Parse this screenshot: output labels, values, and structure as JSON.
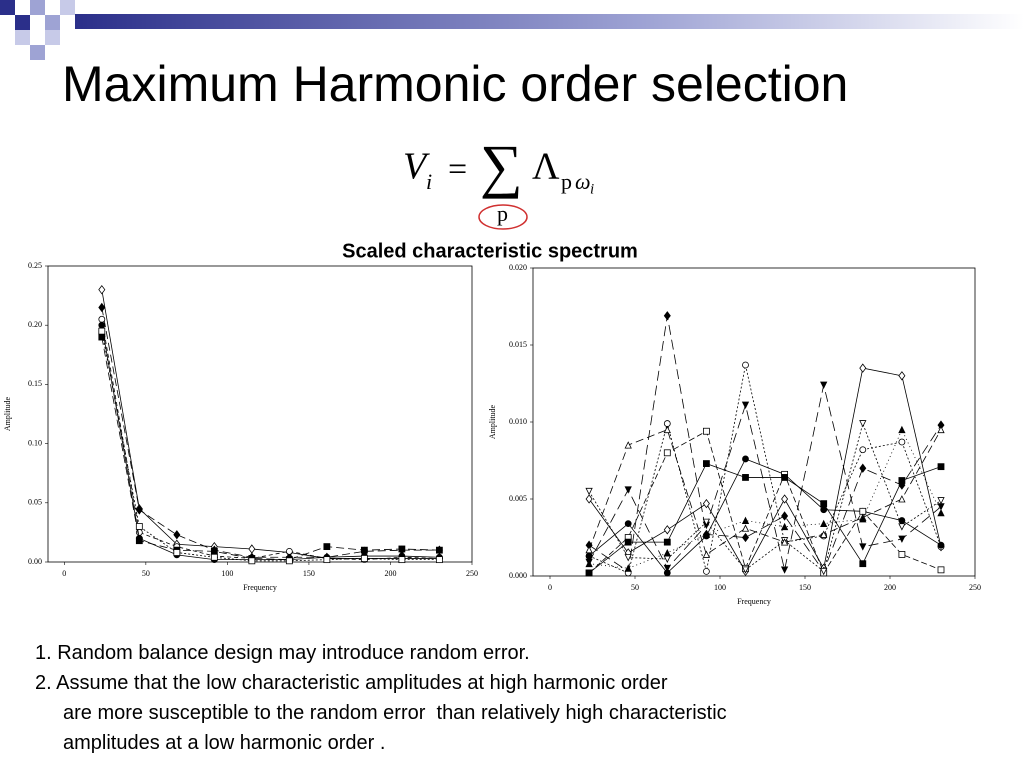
{
  "slide": {
    "title": "Maximum Harmonic order selection",
    "formula": {
      "lhs": "V",
      "lhs_sub": "i",
      "eq": "=",
      "sum": "∑",
      "sum_sub": "p",
      "term": "Λ",
      "term_sub_p": "p",
      "term_sub_omega": "ω",
      "term_sub_i": "i"
    },
    "subtitle": "Scaled characteristic spectrum",
    "notes": [
      "1. Random balance design may introduce random error.",
      "2. Assume that the low characteristic amplitudes at high harmonic order",
      "are more susceptible to the random error  than relatively high characteristic",
      "amplitudes at a low harmonic order ."
    ]
  },
  "chart_data": [
    {
      "type": "line",
      "x_label": "Frequency",
      "y_label": "Amplitude",
      "x": [
        23,
        46,
        69,
        92,
        115,
        138,
        161,
        184,
        207,
        230
      ],
      "xlim": [
        -10,
        250
      ],
      "xticks": [
        0,
        50,
        100,
        150,
        200,
        250
      ],
      "ylim": [
        0,
        0.25
      ],
      "yticks": [
        {
          "value": 0,
          "label": "0.00"
        },
        {
          "value": 0.05,
          "label": "0.05"
        },
        {
          "value": 0.1,
          "label": "0.10"
        },
        {
          "value": 0.15,
          "label": "0.15"
        },
        {
          "value": 0.2,
          "label": "0.20"
        },
        {
          "value": 0.25,
          "label": "0.25"
        }
      ],
      "series": [
        {
          "color": "#000000",
          "marker": "diamond",
          "filled": false,
          "dash": "",
          "values": [
            0.23,
            0.045,
            0.015,
            0.013,
            0.011,
            0.008,
            0.003,
            0.003,
            0.003,
            0.003
          ]
        },
        {
          "color": "#000000",
          "marker": "diamond",
          "filled": true,
          "dash": "8,4",
          "values": [
            0.215,
            0.044,
            0.023,
            0.01,
            0.004,
            0.004,
            0.004,
            0.009,
            0.01,
            0.01
          ]
        },
        {
          "color": "#000000",
          "marker": "circle",
          "filled": false,
          "dash": "4,3",
          "values": [
            0.205,
            0.025,
            0.013,
            0.005,
            0.003,
            0.009,
            0.003,
            0.002,
            0.004,
            0.003
          ]
        },
        {
          "color": "#000000",
          "marker": "circle",
          "filled": true,
          "dash": "",
          "values": [
            0.2,
            0.02,
            0.006,
            0.002,
            0.002,
            0.002,
            0.004,
            0.005,
            0.005,
            0.004
          ]
        },
        {
          "color": "#000000",
          "marker": "square",
          "filled": true,
          "dash": "8,4",
          "values": [
            0.19,
            0.018,
            0.01,
            0.009,
            0.003,
            0.002,
            0.013,
            0.01,
            0.011,
            0.01
          ]
        },
        {
          "color": "#000000",
          "marker": "square",
          "filled": false,
          "dash": "2,2",
          "values": [
            0.195,
            0.03,
            0.008,
            0.004,
            0.001,
            0.001,
            0.002,
            0.003,
            0.002,
            0.002
          ]
        }
      ]
    },
    {
      "type": "line",
      "x_label": "Frequency",
      "y_label": "Amplitude",
      "x": [
        23,
        46,
        69,
        92,
        115,
        138,
        161,
        184,
        207,
        230
      ],
      "xlim": [
        -10,
        250
      ],
      "xticks": [
        0,
        50,
        100,
        150,
        200,
        250
      ],
      "ylim": [
        0,
        0.02
      ],
      "yticks": [
        {
          "value": 0,
          "label": "0.000"
        },
        {
          "value": 0.005,
          "label": "0.005"
        },
        {
          "value": 0.01,
          "label": "0.010"
        },
        {
          "value": 0.015,
          "label": "0.015"
        },
        {
          "value": 0.02,
          "label": "0.020"
        }
      ],
      "series": [
        {
          "color": "#000000",
          "marker": "diamond",
          "filled": false,
          "dash": "",
          "values": [
            0.005,
            0.0015,
            0.003,
            0.0047,
            0.0003,
            0.005,
            0.0005,
            0.0135,
            0.013,
            0.0019
          ]
        },
        {
          "color": "#000000",
          "marker": "diamond",
          "filled": true,
          "dash": "10,5",
          "values": [
            0.002,
            0.0003,
            0.0169,
            0.0027,
            0.0025,
            0.0039,
            0.0003,
            0.007,
            0.0059,
            0.0098
          ]
        },
        {
          "color": "#000000",
          "marker": "circle",
          "filled": false,
          "dash": "2,2",
          "values": [
            0.0013,
            0.0002,
            0.0099,
            0.0003,
            0.0137,
            0.0022,
            0.0026,
            0.0082,
            0.0087,
            0.0019
          ]
        },
        {
          "color": "#000000",
          "marker": "circle",
          "filled": true,
          "dash": "",
          "values": [
            0.0013,
            0.0034,
            0.0002,
            0.0026,
            0.0076,
            0.0066,
            0.0043,
            0.0042,
            0.0036,
            0.002
          ]
        },
        {
          "color": "#000000",
          "marker": "square",
          "filled": false,
          "dash": "6,3",
          "values": [
            0.0002,
            0.0025,
            0.008,
            0.0094,
            0.0005,
            0.0066,
            0.0002,
            0.0042,
            0.0014,
            0.0004
          ]
        },
        {
          "color": "#000000",
          "marker": "square",
          "filled": true,
          "dash": "",
          "values": [
            0.0002,
            0.0022,
            0.0022,
            0.0073,
            0.0064,
            0.0064,
            0.0047,
            0.0008,
            0.0062,
            0.0071
          ]
        },
        {
          "color": "#000000",
          "marker": "tri-down",
          "filled": true,
          "dash": "10,5",
          "values": [
            0.0009,
            0.0056,
            0.0005,
            0.0033,
            0.0111,
            0.0004,
            0.0124,
            0.0019,
            0.0024,
            0.0045
          ]
        },
        {
          "color": "#000000",
          "marker": "tri-down",
          "filled": false,
          "dash": "2,2",
          "values": [
            0.0055,
            0.0012,
            0.0011,
            0.0035,
            0.0004,
            0.0023,
            0.0003,
            0.0099,
            0.0032,
            0.0049
          ]
        },
        {
          "color": "#000000",
          "marker": "tri-up",
          "filled": false,
          "dash": "8,4",
          "values": [
            0.0017,
            0.0085,
            0.0095,
            0.0014,
            0.0031,
            0.0022,
            0.0027,
            0.0038,
            0.005,
            0.0095
          ]
        },
        {
          "color": "#000000",
          "marker": "tri-up",
          "filled": true,
          "dash": "1,3",
          "values": [
            0.0008,
            0.0005,
            0.0015,
            0.0027,
            0.0036,
            0.0032,
            0.0034,
            0.0037,
            0.0095,
            0.0041
          ]
        }
      ]
    }
  ]
}
